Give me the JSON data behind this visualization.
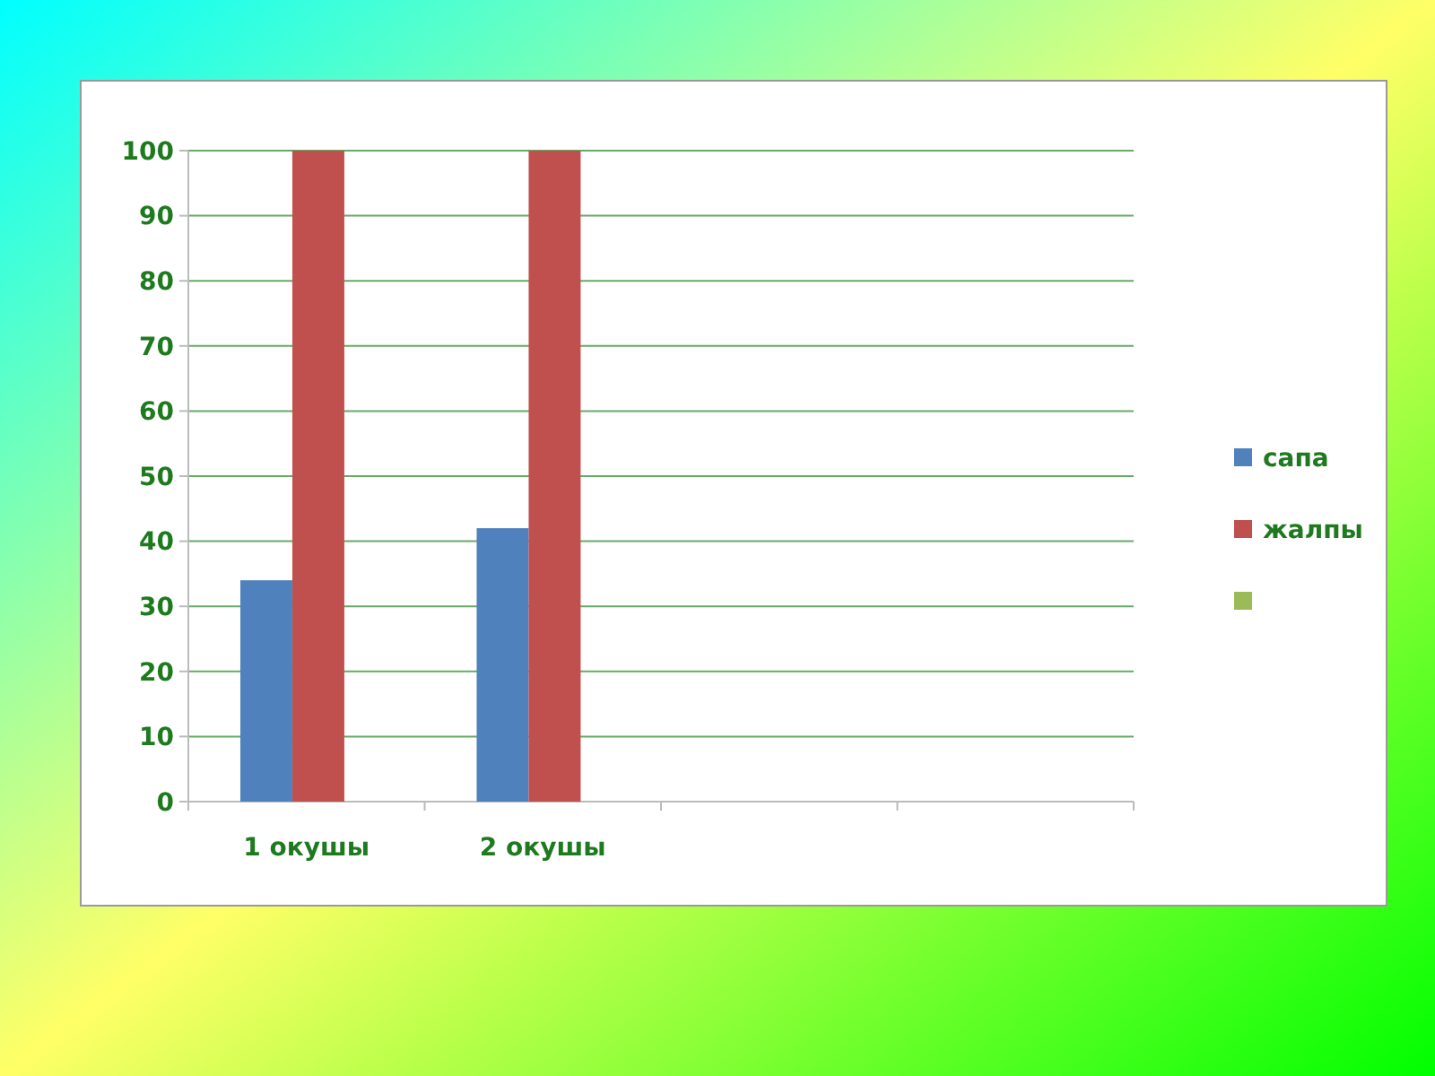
{
  "chart_data": {
    "type": "bar",
    "categories": [
      "1 окушы",
      "2 окушы",
      null,
      null
    ],
    "series": [
      {
        "name": "сапа",
        "color": "#4f81bd",
        "values": [
          34,
          42,
          null,
          null
        ]
      },
      {
        "name": "жалпы",
        "color": "#c0504d",
        "values": [
          100,
          100,
          null,
          null
        ]
      },
      {
        "color": "#9bbb59",
        "values": [
          null,
          null,
          null,
          null
        ]
      }
    ],
    "ylim": [
      0,
      100
    ],
    "yticks": [
      0,
      10,
      20,
      30,
      40,
      50,
      60,
      70,
      80,
      90,
      100
    ],
    "grid": "y",
    "legend": "right"
  }
}
